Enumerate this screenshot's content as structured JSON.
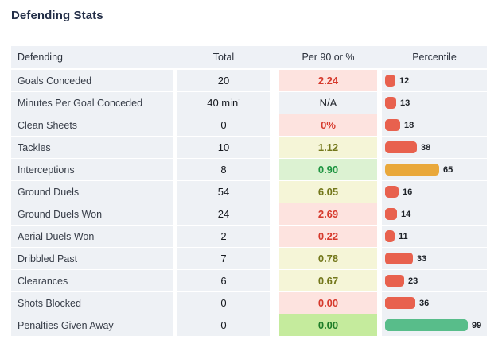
{
  "page": {
    "title": "Defending Stats"
  },
  "table": {
    "headers": [
      "Defending",
      "Total",
      "Per 90 or %",
      "Percentile"
    ],
    "rows": [
      {
        "label": "Goals Conceded",
        "total": "20",
        "per90": "2.24",
        "per90_style": "bad",
        "percentile": 12,
        "bar_color": "red"
      },
      {
        "label": "Minutes Per Goal Conceded",
        "total": "40 min'",
        "per90": "N/A",
        "per90_style": "neutral",
        "percentile": 13,
        "bar_color": "red"
      },
      {
        "label": "Clean Sheets",
        "total": "0",
        "per90": "0%",
        "per90_style": "bad",
        "percentile": 18,
        "bar_color": "red"
      },
      {
        "label": "Tackles",
        "total": "10",
        "per90": "1.12",
        "per90_style": "mid",
        "percentile": 38,
        "bar_color": "red"
      },
      {
        "label": "Interceptions",
        "total": "8",
        "per90": "0.90",
        "per90_style": "good",
        "percentile": 65,
        "bar_color": "amber"
      },
      {
        "label": "Ground Duels",
        "total": "54",
        "per90": "6.05",
        "per90_style": "mid",
        "percentile": 16,
        "bar_color": "red"
      },
      {
        "label": "Ground Duels Won",
        "total": "24",
        "per90": "2.69",
        "per90_style": "bad",
        "percentile": 14,
        "bar_color": "red"
      },
      {
        "label": "Aerial Duels Won",
        "total": "2",
        "per90": "0.22",
        "per90_style": "bad",
        "percentile": 11,
        "bar_color": "red"
      },
      {
        "label": "Dribbled Past",
        "total": "7",
        "per90": "0.78",
        "per90_style": "mid",
        "percentile": 33,
        "bar_color": "red"
      },
      {
        "label": "Clearances",
        "total": "6",
        "per90": "0.67",
        "per90_style": "mid",
        "percentile": 23,
        "bar_color": "red"
      },
      {
        "label": "Shots Blocked",
        "total": "0",
        "per90": "0.00",
        "per90_style": "bad",
        "percentile": 36,
        "bar_color": "red"
      },
      {
        "label": "Penalties Given Away",
        "total": "0",
        "per90": "0.00",
        "per90_style": "great",
        "percentile": 99,
        "bar_color": "green"
      }
    ]
  },
  "colors": {
    "per90_styles": {
      "bad": {
        "bg": "#fde3df",
        "text": "#d6392c"
      },
      "mid": {
        "bg": "#f5f5d7",
        "text": "#73771b"
      },
      "good": {
        "bg": "#dcf2d2",
        "text": "#1d9440"
      },
      "great": {
        "bg": "#c5eb9d",
        "text": "#1e7d27"
      },
      "neutral": {
        "bg": "#eef1f5",
        "text": "#20242b"
      }
    },
    "bar_colors": {
      "red": "#e8614e",
      "amber": "#e9a83b",
      "green": "#58bd8a"
    },
    "header_bg": "#eef1f6",
    "row_bg": "#eef1f5",
    "title_color": "#232e47"
  }
}
